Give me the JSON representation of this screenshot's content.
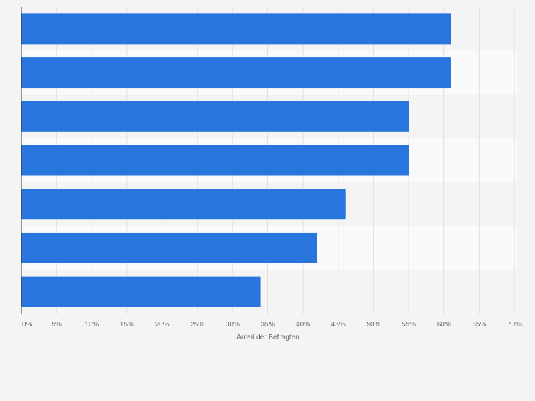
{
  "chart_data": {
    "type": "bar",
    "orientation": "horizontal",
    "categories": [
      "",
      "",
      "",
      "",
      "",
      "",
      ""
    ],
    "values": [
      61,
      61,
      55,
      55,
      46,
      42,
      34
    ],
    "xlim": [
      0,
      70
    ],
    "x_ticks": [
      0,
      5,
      10,
      15,
      20,
      25,
      30,
      35,
      40,
      45,
      50,
      55,
      60,
      65,
      70
    ],
    "x_tick_labels": [
      "0%",
      "5%",
      "10%",
      "15%",
      "20%",
      "25%",
      "30%",
      "35%",
      "40%",
      "45%",
      "50%",
      "55%",
      "60%",
      "65%",
      "70%"
    ],
    "xlabel": "Anteil der Befragten",
    "ylabel": "",
    "title": "",
    "grid": "vertical",
    "legend": "none",
    "bar_color": "#2876dd",
    "band_colors": [
      "#f4f4f4",
      "#fafafa"
    ],
    "grid_color": "#e0e0e0",
    "axis_color": "#333333",
    "label_color": "#666666"
  }
}
